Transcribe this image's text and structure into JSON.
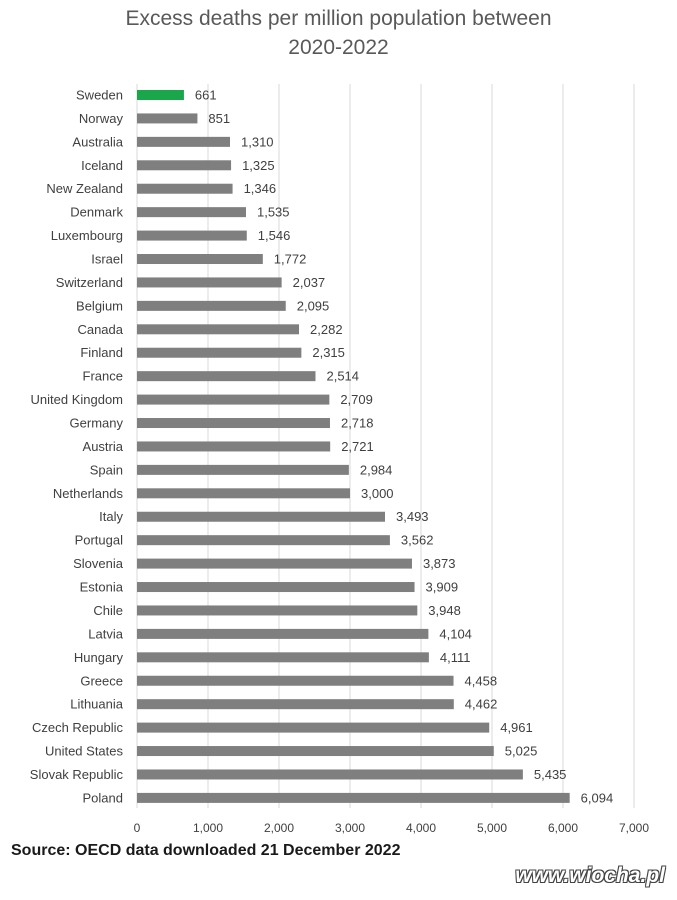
{
  "chart_data": {
    "type": "bar",
    "orientation": "horizontal",
    "title": "Excess deaths per million population between 2020-2022",
    "title_lines": [
      "Excess deaths per million population between",
      "2020-2022"
    ],
    "categories": [
      "Sweden",
      "Norway",
      "Australia",
      "Iceland",
      "New Zealand",
      "Denmark",
      "Luxembourg",
      "Israel",
      "Switzerland",
      "Belgium",
      "Canada",
      "Finland",
      "France",
      "United Kingdom",
      "Germany",
      "Austria",
      "Spain",
      "Netherlands",
      "Italy",
      "Portugal",
      "Slovenia",
      "Estonia",
      "Chile",
      "Latvia",
      "Hungary",
      "Greece",
      "Lithuania",
      "Czech Republic",
      "United States",
      "Slovak Republic",
      "Poland"
    ],
    "values": [
      661,
      851,
      1310,
      1325,
      1346,
      1535,
      1546,
      1772,
      2037,
      2095,
      2282,
      2315,
      2514,
      2709,
      2718,
      2721,
      2984,
      3000,
      3493,
      3562,
      3873,
      3909,
      3948,
      4104,
      4111,
      4458,
      4462,
      4961,
      5025,
      5435,
      6094
    ],
    "value_labels": [
      "661",
      "851",
      "1,310",
      "1,325",
      "1,346",
      "1,535",
      "1,546",
      "1,772",
      "2,037",
      "2,095",
      "2,282",
      "2,315",
      "2,514",
      "2,709",
      "2,718",
      "2,721",
      "2,984",
      "3,000",
      "3,493",
      "3,562",
      "3,873",
      "3,909",
      "3,948",
      "4,104",
      "4,111",
      "4,458",
      "4,462",
      "4,961",
      "5,025",
      "5,435",
      "6,094"
    ],
    "xlim": [
      0,
      7000
    ],
    "x_ticks": [
      0,
      1000,
      2000,
      3000,
      4000,
      5000,
      6000,
      7000
    ],
    "x_tick_labels": [
      "0",
      "1,000",
      "2,000",
      "3,000",
      "4,000",
      "5,000",
      "6,000",
      "7,000"
    ],
    "xlabel": "",
    "ylabel": "",
    "grid": "vertical",
    "bar_color": "#7f7f7f",
    "highlight_category": "Sweden",
    "highlight_color": "#1aa64a",
    "source": "Source: OECD data downloaded 21 December 2022"
  },
  "watermark": "www.wiocha.pl"
}
